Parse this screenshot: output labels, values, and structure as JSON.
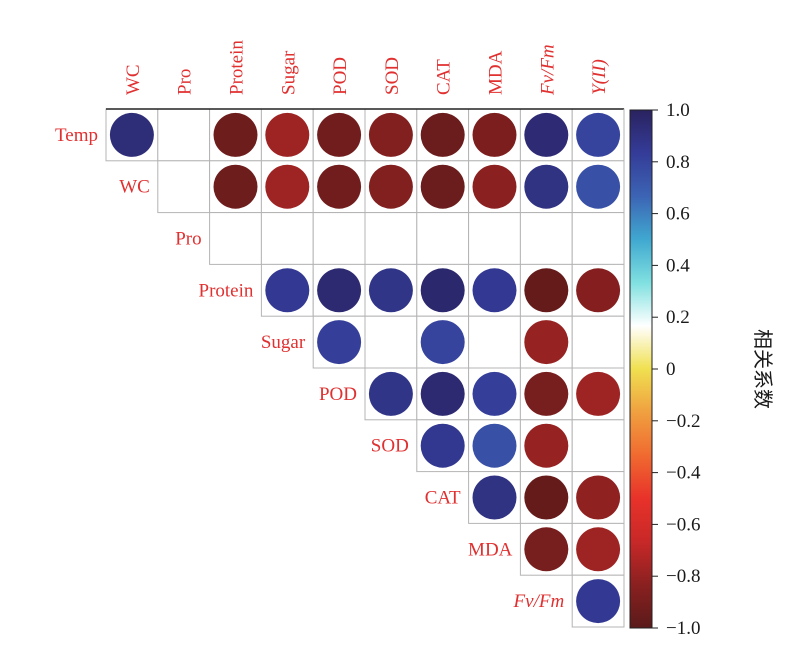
{
  "chart_data": {
    "type": "heatmap",
    "style": "circle-correlation-matrix-upper-triangle",
    "row_labels": [
      "Temp",
      "WC",
      "Pro",
      "Protein",
      "Sugar",
      "POD",
      "SOD",
      "CAT",
      "MDA",
      "Fv/Fm"
    ],
    "col_labels": [
      "WC",
      "Pro",
      "Protein",
      "Sugar",
      "POD",
      "SOD",
      "CAT",
      "MDA",
      "Fv/Fm",
      "Y(II)"
    ],
    "italic_labels": [
      "Fv/Fm",
      "Y(II)"
    ],
    "matrix": [
      [
        0.93,
        null,
        -0.93,
        -0.78,
        -0.92,
        -0.86,
        -0.94,
        -0.88,
        0.94,
        0.8
      ],
      [
        null,
        null,
        -0.93,
        -0.78,
        -0.92,
        -0.86,
        -0.94,
        -0.83,
        0.9,
        0.75
      ],
      [
        null,
        null,
        null,
        null,
        null,
        null,
        null,
        null,
        null,
        null
      ],
      [
        null,
        null,
        null,
        0.85,
        0.95,
        0.88,
        0.96,
        0.85,
        -0.96,
        -0.85
      ],
      [
        null,
        null,
        null,
        null,
        0.82,
        null,
        0.8,
        null,
        -0.8,
        null
      ],
      [
        null,
        null,
        null,
        null,
        null,
        0.88,
        0.95,
        0.82,
        -0.9,
        -0.78
      ],
      [
        null,
        null,
        null,
        null,
        null,
        null,
        0.86,
        0.75,
        -0.8,
        null
      ],
      [
        null,
        null,
        null,
        null,
        null,
        null,
        null,
        0.9,
        -0.96,
        -0.82
      ],
      [
        null,
        null,
        null,
        null,
        null,
        null,
        null,
        null,
        -0.9,
        -0.78
      ],
      [
        null,
        null,
        null,
        null,
        null,
        null,
        null,
        null,
        null,
        0.85
      ]
    ],
    "colorbar": {
      "label": "相关系数",
      "range": [
        -1.0,
        1.0
      ],
      "ticks": [
        "1.0",
        "0.8",
        "0.6",
        "0.4",
        "0.2",
        "0",
        "−0.2",
        "−0.4",
        "−0.6",
        "−0.8",
        "−1.0"
      ]
    },
    "colormap_stops": [
      "#5a1a1a",
      "#8a2020",
      "#c82828",
      "#e8322a",
      "#f06a30",
      "#f0a040",
      "#f0e050",
      "#ffffff",
      "#80e0e0",
      "#40a8d0",
      "#3c64b4",
      "#343c98",
      "#2a2260"
    ]
  }
}
